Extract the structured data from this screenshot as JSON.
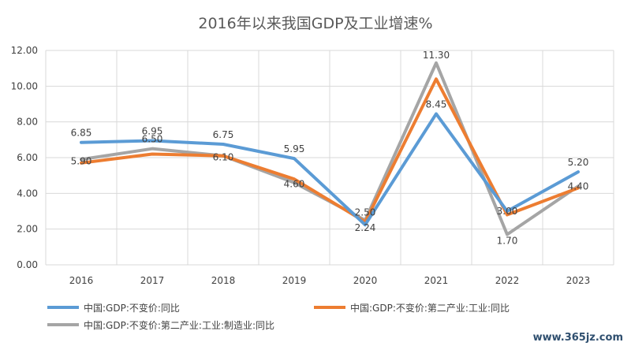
{
  "chart_data": {
    "type": "line",
    "title": "2016年以来我国GDP及工业增速%",
    "categories": [
      "2016",
      "2017",
      "2018",
      "2019",
      "2020",
      "2021",
      "2022",
      "2023"
    ],
    "ylim": [
      0,
      12
    ],
    "yticks": [
      "0.00",
      "2.00",
      "4.00",
      "6.00",
      "8.00",
      "10.00",
      "12.00"
    ],
    "grid": true,
    "legend_position": "bottom",
    "series": [
      {
        "name": "中国:GDP:不变价:同比",
        "color": "#5b9bd5",
        "values": [
          6.85,
          6.95,
          6.75,
          5.95,
          2.24,
          8.45,
          3.0,
          5.2
        ],
        "labels": [
          "6.85",
          "6.95",
          "6.75",
          "5.95",
          "2.24",
          "8.45",
          "3.00",
          "5.20"
        ]
      },
      {
        "name": "中国:GDP:不变价:第二产业:工业:同比",
        "color": "#ed7d31",
        "values": [
          5.7,
          6.2,
          6.1,
          4.8,
          2.4,
          10.4,
          2.8,
          4.3
        ],
        "labels": []
      },
      {
        "name": "中国:GDP:不变价:第二产业:工业:制造业:同比",
        "color": "#a5a5a5",
        "values": [
          5.9,
          6.5,
          6.1,
          4.6,
          2.5,
          11.3,
          1.7,
          4.4
        ],
        "labels": [
          "5.90",
          "6.50",
          "6.10",
          "4.60",
          "2.50",
          "11.30",
          "1.70",
          "4.40"
        ]
      }
    ]
  },
  "watermark": "www.365jz.com"
}
